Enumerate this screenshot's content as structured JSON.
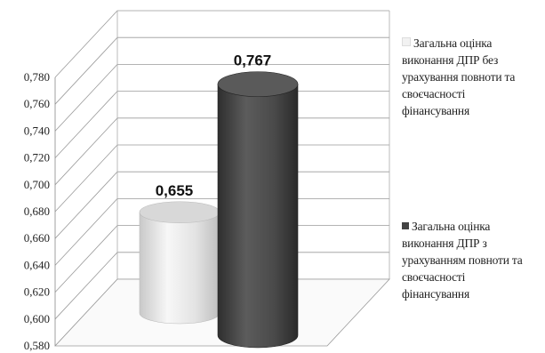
{
  "chart_data": {
    "type": "bar",
    "categories": [
      "Загальна оцінка виконання ДПР без урахування повноти та своєчасності фінансування",
      "Загальна оцінка виконання ДПР з урахуванням повноти та своєчасності фінансування"
    ],
    "values": [
      0.655,
      0.767
    ],
    "value_labels": [
      "0,655",
      "0,767"
    ],
    "ylim": [
      0.58,
      0.78
    ],
    "y_ticks": [
      "0,580",
      "0,600",
      "0,620",
      "0,640",
      "0,660",
      "0,680",
      "0,700",
      "0,720",
      "0,740",
      "0,760",
      "0,780"
    ],
    "grid": true,
    "legend_position": "right",
    "colors": [
      "#e6e6e6",
      "#4a4a4a"
    ],
    "title": "",
    "xlabel": "",
    "ylabel": ""
  }
}
